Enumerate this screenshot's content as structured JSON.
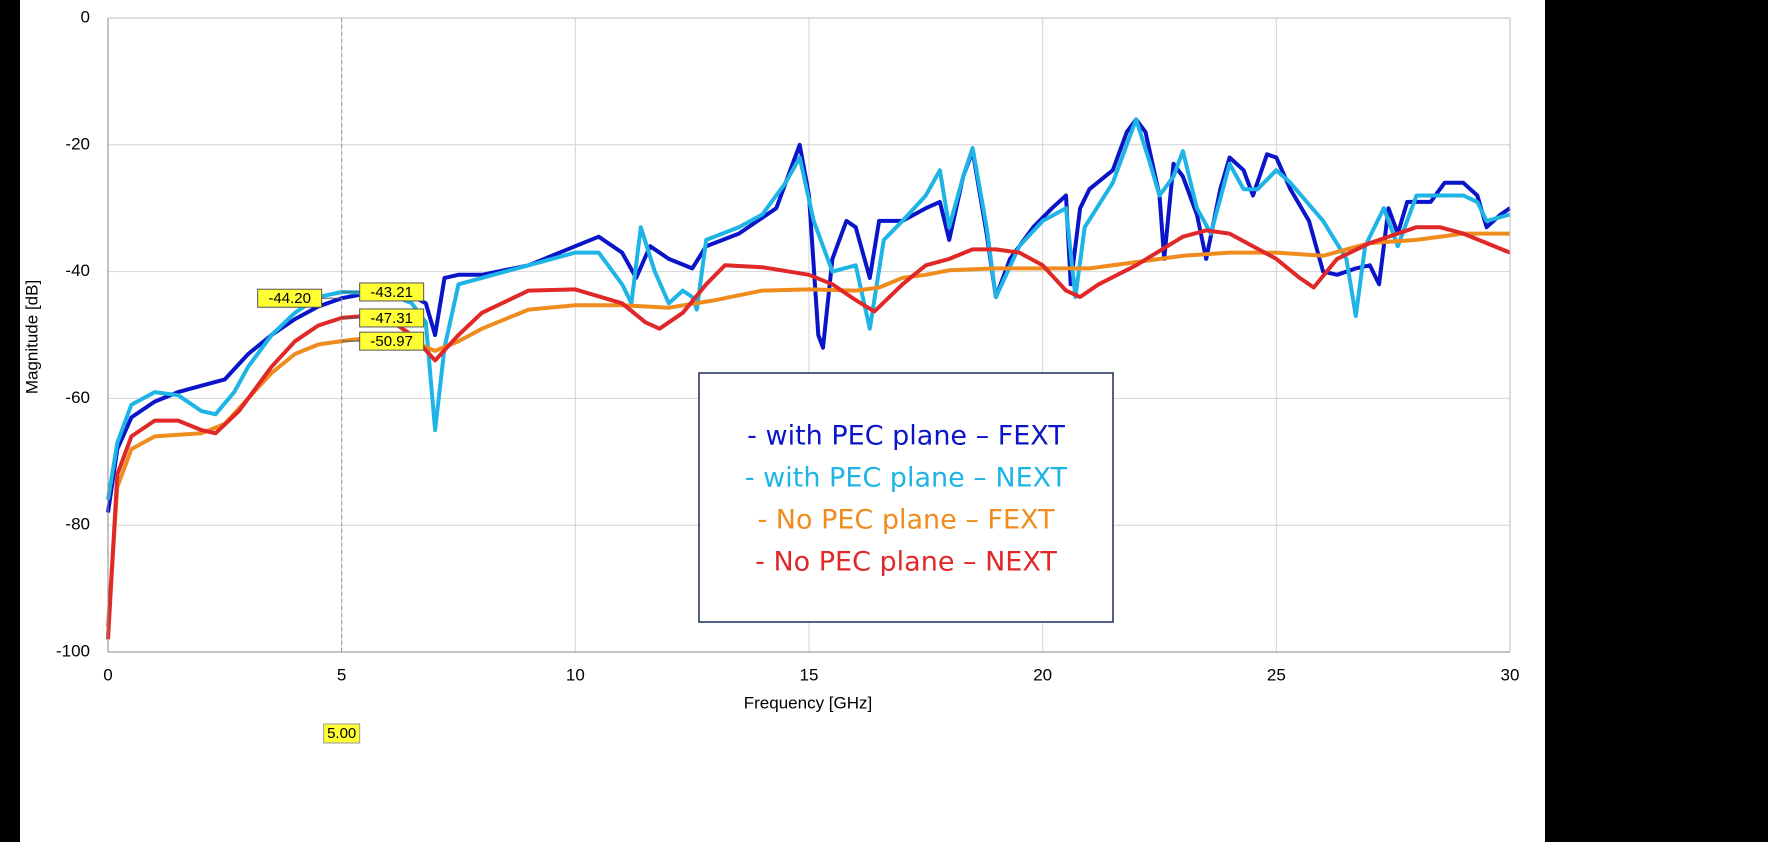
{
  "chart_data": {
    "type": "line",
    "xlabel": "Frequency [GHz]",
    "ylabel": "Magnitude [dB]",
    "xlim": [
      0,
      30
    ],
    "ylim": [
      -100,
      0
    ],
    "xticks": [
      0,
      5,
      10,
      15,
      20,
      25,
      30
    ],
    "yticks": [
      0,
      -20,
      -40,
      -60,
      -80,
      -100
    ],
    "grid": true,
    "series": [
      {
        "name": "- with PEC plane –  FEXT",
        "color": "#0a14c8",
        "x": [
          0,
          0.2,
          0.5,
          1,
          1.5,
          2,
          2.5,
          3,
          3.5,
          4,
          4.5,
          5,
          5.5,
          6,
          6.5,
          6.8,
          7,
          7.2,
          7.5,
          8,
          9,
          10,
          10.5,
          11,
          11.3,
          11.6,
          12,
          12.5,
          12.8,
          13.5,
          14,
          14.3,
          14.6,
          14.8,
          15,
          15.2,
          15.3,
          15.5,
          15.8,
          16,
          16.3,
          16.5,
          17,
          17.5,
          17.8,
          18,
          18.3,
          18.5,
          18.8,
          19,
          19.3,
          19.8,
          20.2,
          20.5,
          20.6,
          20.8,
          21,
          21.5,
          21.8,
          22,
          22.2,
          22.5,
          22.6,
          22.8,
          23,
          23.3,
          23.5,
          23.8,
          24,
          24.3,
          24.5,
          24.8,
          25,
          25.3,
          25.7,
          26,
          26.3,
          26.7,
          27,
          27.2,
          27.4,
          27.6,
          27.8,
          28.3,
          28.6,
          29,
          29.3,
          29.5,
          29.8,
          30
        ],
        "values": [
          -78,
          -68,
          -63,
          -60.5,
          -59,
          -58,
          -57,
          -53,
          -50,
          -47.5,
          -45.5,
          -44.2,
          -43.5,
          -43.3,
          -43.8,
          -45,
          -50,
          -41,
          -40.5,
          -40.5,
          -39,
          -36,
          -34.5,
          -37,
          -41,
          -36,
          -38,
          -39.5,
          -36,
          -34,
          -31.5,
          -30,
          -24,
          -20,
          -28,
          -50,
          -52,
          -38,
          -32,
          -33,
          -41,
          -32,
          -32,
          -30,
          -29,
          -35,
          -25,
          -21,
          -34,
          -44,
          -38,
          -33,
          -30,
          -28,
          -42,
          -30,
          -27,
          -24,
          -18,
          -16,
          -18,
          -28,
          -38,
          -23,
          -25,
          -31,
          -38,
          -27,
          -22,
          -24,
          -28,
          -21.5,
          -22,
          -27,
          -32,
          -40,
          -40.5,
          -39.5,
          -39,
          -42,
          -30,
          -34,
          -29,
          -29,
          -26,
          -26,
          -28,
          -33,
          -31,
          -30
        ]
      },
      {
        "name": "- with PEC plane –  NEXT",
        "color": "#1eb4e6",
        "x": [
          0,
          0.2,
          0.5,
          1,
          1.5,
          2,
          2.3,
          2.7,
          3,
          3.5,
          4,
          4.5,
          5,
          5.5,
          6,
          6.5,
          6.8,
          7,
          7.2,
          7.5,
          8,
          9,
          10,
          10.5,
          11,
          11.2,
          11.4,
          11.7,
          12,
          12.3,
          12.5,
          12.6,
          12.8,
          13.5,
          14,
          14.5,
          14.8,
          15.1,
          15.5,
          16,
          16.3,
          16.6,
          17,
          17.5,
          17.8,
          18,
          18.3,
          18.5,
          18.8,
          19,
          19.5,
          20,
          20.5,
          20.7,
          20.9,
          21.5,
          22,
          22.3,
          22.5,
          22.8,
          23,
          23.3,
          23.6,
          24,
          24.3,
          24.6,
          25,
          25.3,
          26,
          26.5,
          26.7,
          26.9,
          27.3,
          27.6,
          28,
          28.5,
          29,
          29.3,
          29.5,
          30
        ],
        "values": [
          -76,
          -67,
          -61,
          -59,
          -59.5,
          -62,
          -62.5,
          -59,
          -55,
          -50,
          -46.5,
          -44,
          -43.21,
          -43.3,
          -43.5,
          -45,
          -48,
          -65,
          -52,
          -42,
          -41,
          -39,
          -37,
          -37,
          -42,
          -45,
          -33,
          -40,
          -45,
          -43,
          -44,
          -46,
          -35,
          -33,
          -31,
          -26,
          -22,
          -32,
          -40,
          -39,
          -49,
          -35,
          -32,
          -28,
          -24,
          -33,
          -25,
          -20.5,
          -33,
          -44,
          -36,
          -32,
          -30,
          -44,
          -33,
          -26,
          -16,
          -23,
          -28,
          -25,
          -21,
          -30,
          -34,
          -23,
          -27,
          -27,
          -24,
          -26,
          -32,
          -38,
          -47,
          -36,
          -30,
          -36,
          -28,
          -28,
          -28,
          -29,
          -32,
          -31
        ]
      },
      {
        "name": "- No PEC plane – FEXT",
        "color": "#f08c1e",
        "x": [
          0,
          0.2,
          0.5,
          1,
          2,
          2.5,
          3,
          3.5,
          4,
          4.5,
          5,
          5.5,
          6,
          6.5,
          7,
          7.5,
          8,
          9,
          10,
          11,
          12,
          13,
          14,
          15,
          16,
          16.5,
          17,
          17.5,
          18,
          19,
          20,
          21,
          22,
          23,
          24,
          25,
          26,
          27,
          28,
          29,
          30
        ],
        "values": [
          -96,
          -74,
          -68,
          -66,
          -65.5,
          -64,
          -60,
          -56,
          -53,
          -51.5,
          -50.97,
          -50.5,
          -50.5,
          -51,
          -52.5,
          -51,
          -49,
          -46,
          -45.3,
          -45.3,
          -45.7,
          -44.5,
          -43,
          -42.8,
          -43,
          -42.5,
          -41,
          -40.5,
          -39.8,
          -39.5,
          -39.5,
          -39.5,
          -38.5,
          -37.5,
          -37,
          -37,
          -37.5,
          -35.5,
          -35,
          -34,
          -34
        ]
      },
      {
        "name": "- No PEC plane – NEXT",
        "color": "#e02828",
        "x": [
          0,
          0.2,
          0.5,
          1,
          1.5,
          2,
          2.3,
          2.8,
          3.5,
          4,
          4.5,
          5,
          5.5,
          6,
          6.5,
          7,
          7.5,
          8,
          9,
          10,
          11,
          11.5,
          11.8,
          12.3,
          12.8,
          13.2,
          14,
          15,
          15.5,
          16,
          16.4,
          17,
          17.5,
          18,
          18.5,
          19,
          19.5,
          20,
          20.5,
          20.8,
          21.2,
          22,
          23,
          23.5,
          24,
          25,
          25.5,
          25.8,
          26.3,
          27,
          28,
          28.5,
          29,
          30
        ],
        "values": [
          -98,
          -72,
          -66,
          -63.5,
          -63.5,
          -65,
          -65.5,
          -62,
          -55,
          -51,
          -48.5,
          -47.31,
          -47,
          -47.5,
          -50,
          -54,
          -50,
          -46.5,
          -43,
          -42.8,
          -45,
          -48,
          -49,
          -46.5,
          -42,
          -39,
          -39.3,
          -40.5,
          -42,
          -44.5,
          -46.3,
          -42,
          -39,
          -38,
          -36.5,
          -36.5,
          -37,
          -39,
          -43,
          -44,
          -42,
          -39,
          -34.5,
          -33.5,
          -34,
          -38,
          -41,
          -42.5,
          -38,
          -35.5,
          -33,
          -33,
          -34,
          -37
        ]
      }
    ],
    "marker": {
      "x": 5,
      "x_label": "5.00",
      "values": [
        -44.2,
        -43.21,
        -47.31,
        -50.97
      ],
      "value_labels": [
        "-44.20",
        "-43.21",
        "-47.31",
        "-50.97"
      ]
    }
  }
}
